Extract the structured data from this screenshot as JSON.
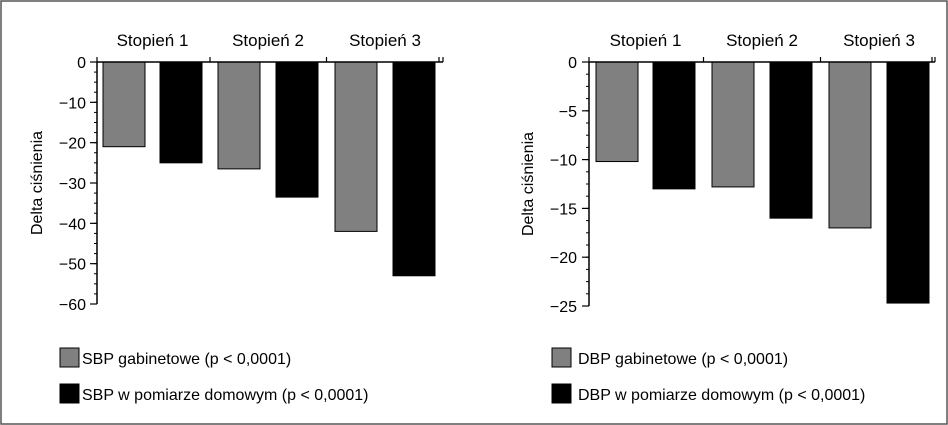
{
  "chart_data": [
    {
      "type": "bar",
      "categories": [
        "Stopień 1",
        "Stopień 2",
        "Stopień 3"
      ],
      "ylabel": "Delta ciśnienia",
      "xlabel": "",
      "ylim": [
        -60,
        0
      ],
      "yticks": [
        0,
        -10,
        -20,
        -30,
        -40,
        -50,
        -60
      ],
      "series": [
        {
          "name": "SBP gabinetowe (p < 0,0001)",
          "color": "#808080",
          "values": [
            -21,
            -26.5,
            -42
          ]
        },
        {
          "name": "SBP w pomiarze domowym (p < 0,0001)",
          "color": "#000000",
          "values": [
            -25,
            -33.5,
            -53
          ]
        }
      ],
      "legend_position": "bottom-left",
      "grid": false
    },
    {
      "type": "bar",
      "categories": [
        "Stopień 1",
        "Stopień 2",
        "Stopień 3"
      ],
      "ylabel": "Delta ciśnienia",
      "xlabel": "",
      "ylim": [
        -25,
        0
      ],
      "yticks": [
        0,
        -5,
        -10,
        -15,
        -20,
        -25
      ],
      "series": [
        {
          "name": "DBP gabinetowe (p < 0,0001)",
          "color": "#808080",
          "values": [
            -10.2,
            -12.8,
            -17
          ]
        },
        {
          "name": "DBP w pomiarze domowym (p < 0,0001)",
          "color": "#000000",
          "values": [
            -13,
            -16,
            -24.7
          ]
        }
      ],
      "legend_position": "bottom-left",
      "grid": false
    }
  ]
}
